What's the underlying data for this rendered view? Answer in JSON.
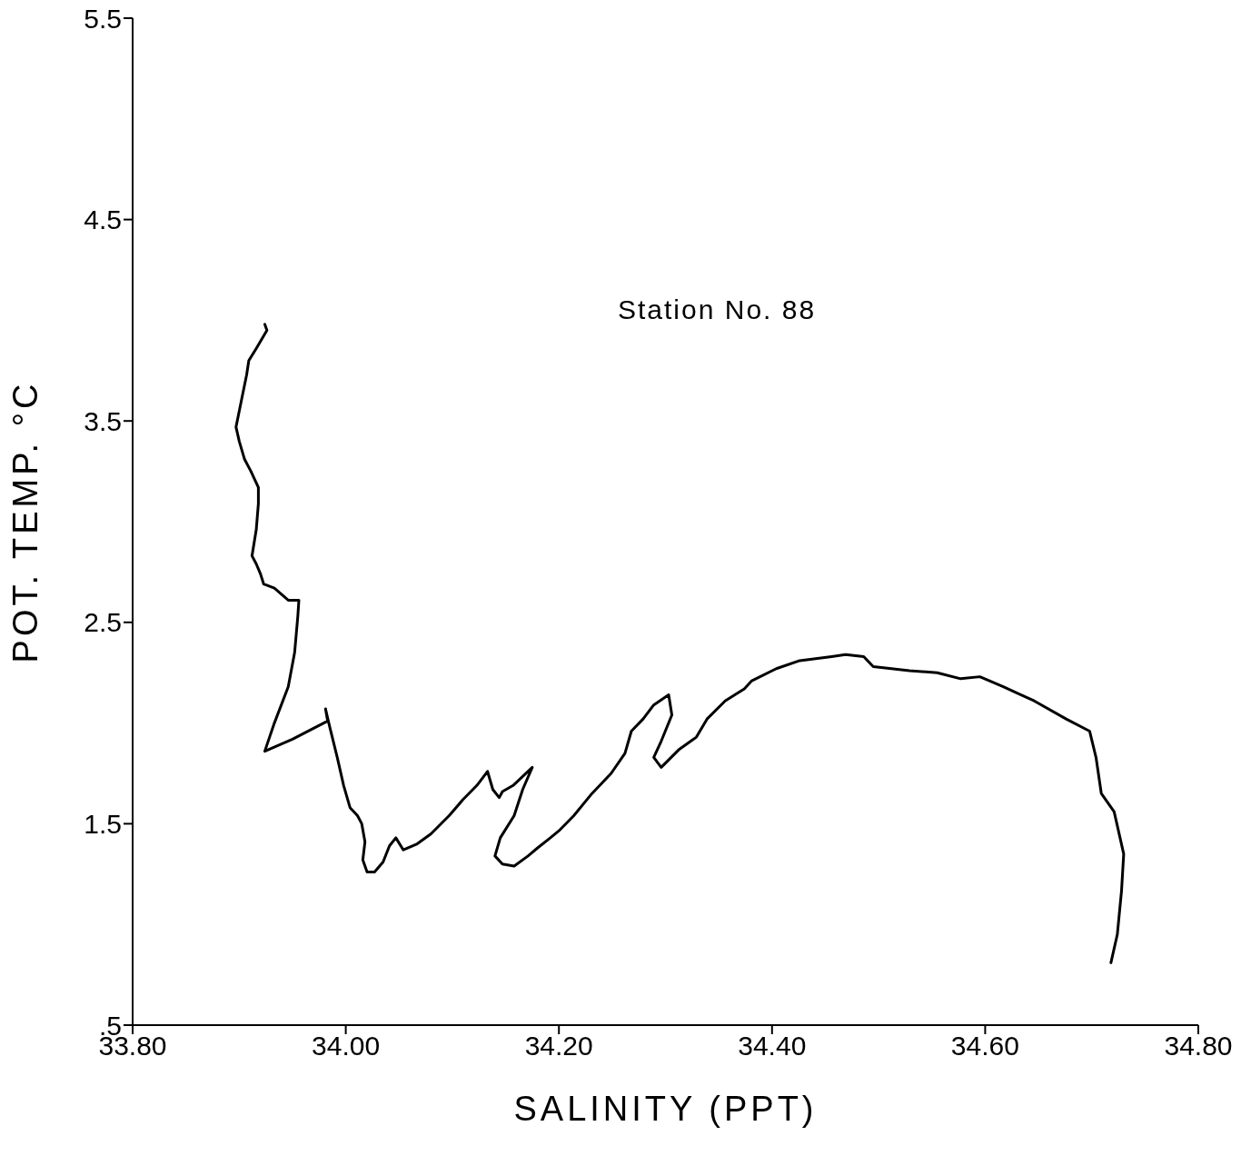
{
  "chart_data": {
    "type": "line",
    "xlabel": "SALINITY (PPT)",
    "ylabel": "POT. TEMP. °C",
    "annotations": [
      "Station No. 88"
    ],
    "xlim": [
      33.8,
      34.8
    ],
    "xticks": [
      {
        "value": 33.8,
        "label": "33.80"
      },
      {
        "value": 34.0,
        "label": "34.00"
      },
      {
        "value": 34.2,
        "label": "34.20"
      },
      {
        "value": 34.4,
        "label": "34.40"
      },
      {
        "value": 34.6,
        "label": "34.60"
      },
      {
        "value": 34.8,
        "label": "34.80"
      }
    ],
    "ylim": [
      0.5,
      5.5
    ],
    "yticks": [
      {
        "value": 0.5,
        "label": ".5"
      },
      1.5,
      2.5,
      3.5,
      4.5,
      5.5
    ],
    "grid": false,
    "legend": false,
    "marker": "none",
    "line_style": "solid",
    "series": [
      {
        "color": "#000000",
        "x": [
          33.924,
          33.926,
          33.916,
          33.909,
          33.907,
          33.902,
          33.897,
          33.9,
          33.905,
          33.911,
          33.918,
          33.918,
          33.916,
          33.912,
          33.916,
          33.92,
          33.923,
          33.933,
          33.946,
          33.956,
          33.955,
          33.952,
          33.946,
          33.933,
          33.924,
          33.95,
          33.983,
          33.981,
          33.985,
          33.992,
          33.998,
          34.004,
          34.011,
          34.015,
          34.018,
          34.016,
          34.02,
          34.027,
          34.035,
          34.041,
          34.047,
          34.054,
          34.067,
          34.08,
          34.097,
          34.11,
          34.123,
          34.133,
          34.138,
          34.144,
          34.147,
          34.157,
          34.175,
          34.166,
          34.158,
          34.145,
          34.14,
          34.147,
          34.158,
          34.171,
          34.18,
          34.192,
          34.201,
          34.214,
          34.231,
          34.249,
          34.262,
          34.268,
          34.279,
          34.289,
          34.303,
          34.306,
          34.296,
          34.289,
          34.296,
          34.313,
          34.329,
          34.339,
          34.356,
          34.374,
          34.381,
          34.404,
          34.426,
          34.456,
          34.469,
          34.486,
          34.495,
          34.529,
          34.555,
          34.577,
          34.595,
          34.617,
          34.646,
          34.676,
          34.698,
          34.704,
          34.709,
          34.721,
          34.73,
          34.728,
          34.724,
          34.718
        ],
        "values": [
          3.98,
          3.95,
          3.86,
          3.8,
          3.73,
          3.6,
          3.47,
          3.4,
          3.31,
          3.25,
          3.17,
          3.09,
          2.96,
          2.83,
          2.79,
          2.74,
          2.69,
          2.67,
          2.61,
          2.61,
          2.53,
          2.35,
          2.18,
          2.0,
          1.86,
          1.92,
          2.01,
          2.07,
          1.98,
          1.83,
          1.69,
          1.58,
          1.54,
          1.5,
          1.41,
          1.32,
          1.26,
          1.26,
          1.31,
          1.39,
          1.43,
          1.37,
          1.4,
          1.45,
          1.54,
          1.62,
          1.69,
          1.76,
          1.67,
          1.63,
          1.66,
          1.69,
          1.78,
          1.67,
          1.54,
          1.43,
          1.34,
          1.3,
          1.29,
          1.34,
          1.38,
          1.43,
          1.47,
          1.54,
          1.65,
          1.75,
          1.85,
          1.96,
          2.02,
          2.09,
          2.14,
          2.04,
          1.91,
          1.83,
          1.78,
          1.87,
          1.93,
          2.02,
          2.11,
          2.17,
          2.21,
          2.27,
          2.31,
          2.33,
          2.34,
          2.33,
          2.28,
          2.26,
          2.25,
          2.22,
          2.23,
          2.18,
          2.11,
          2.02,
          1.96,
          1.83,
          1.65,
          1.56,
          1.35,
          1.17,
          0.95,
          0.81
        ]
      }
    ]
  }
}
